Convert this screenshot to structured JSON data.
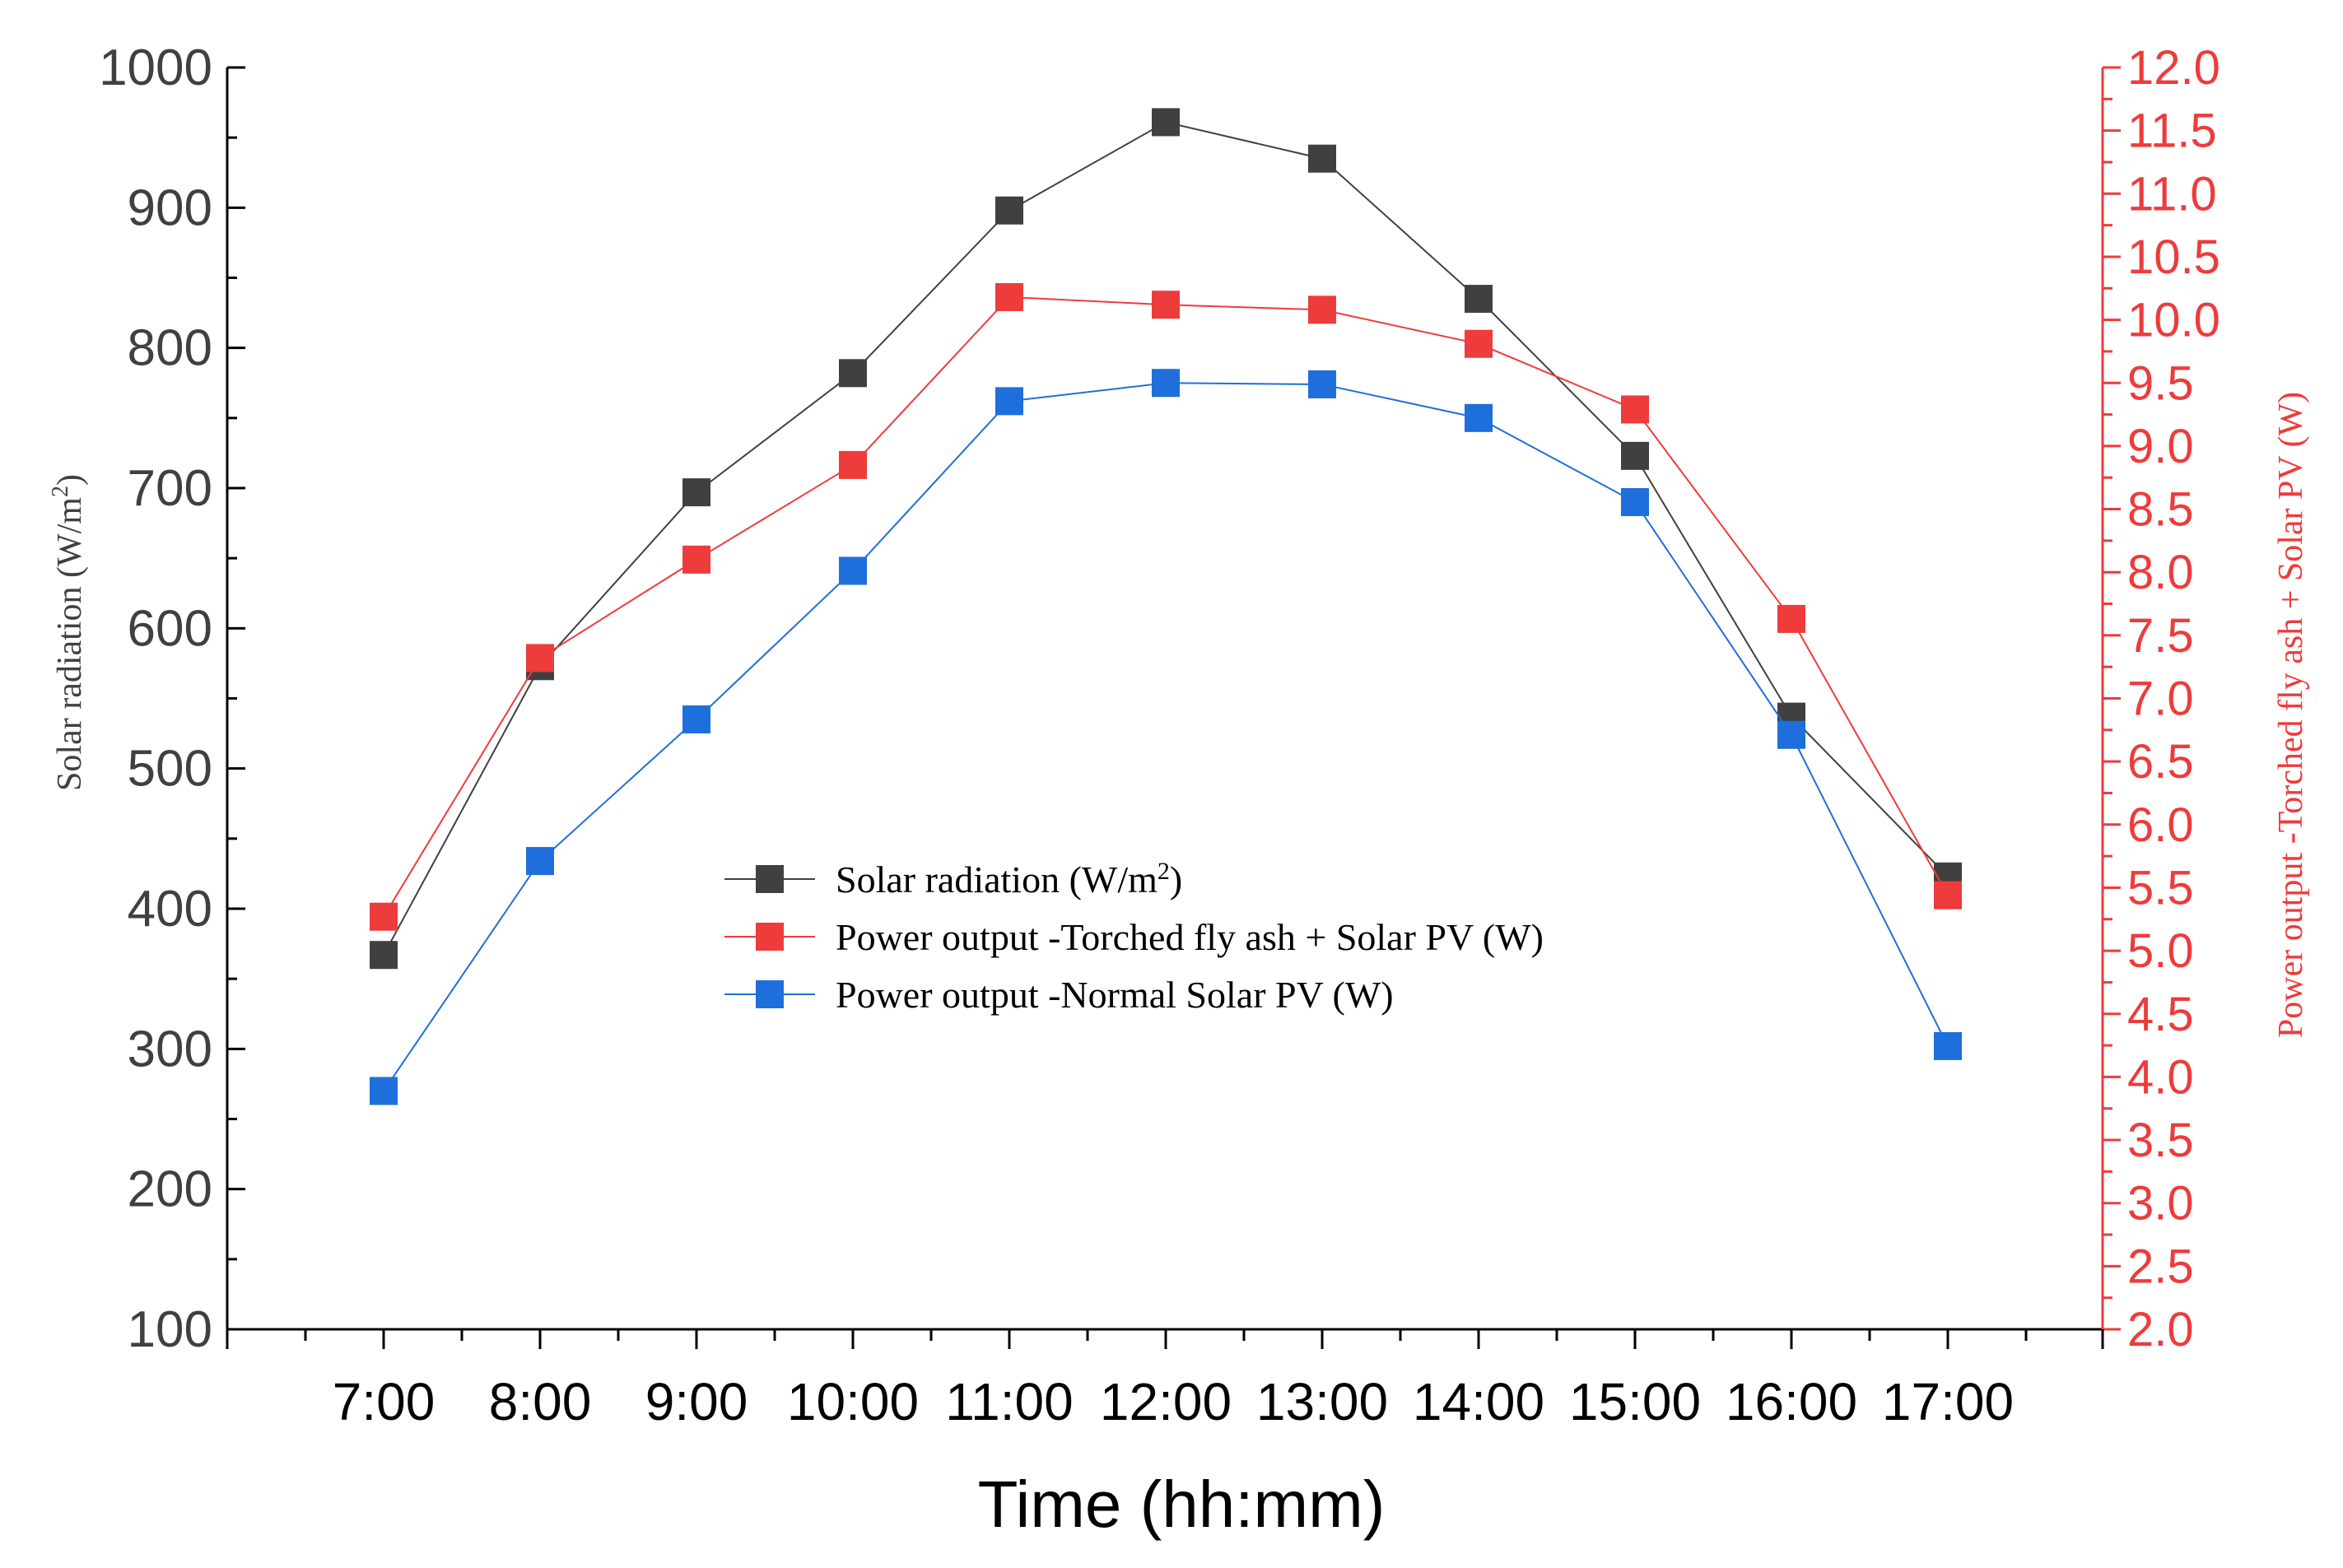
{
  "chart_data": {
    "type": "line",
    "categories": [
      "7:00",
      "8:00",
      "9:00",
      "10:00",
      "11:00",
      "12:00",
      "13:00",
      "14:00",
      "15:00",
      "16:00",
      "17:00"
    ],
    "xlabel": "Time (hh:mm)",
    "ylabel_left": {
      "main": "Solar radiation (W/m",
      "sup": "2",
      "close": ")"
    },
    "ylabel_right": "Power output -Torched fly ash + Solar PV (W)",
    "ylim_left": [
      100,
      1000
    ],
    "yticks_left": [
      "100",
      "200",
      "300",
      "400",
      "500",
      "600",
      "700",
      "800",
      "900",
      "1000"
    ],
    "ylim_right": [
      2.0,
      12.0
    ],
    "yticks_right": [
      "2.0",
      "2.5",
      "3.0",
      "3.5",
      "4.0",
      "4.5",
      "5.0",
      "5.5",
      "6.0",
      "6.5",
      "7.0",
      "7.5",
      "8.0",
      "8.5",
      "9.0",
      "9.5",
      "10.0",
      "10.5",
      "11.0",
      "11.5",
      "12.0"
    ],
    "grid": false,
    "legend_position": "center",
    "series": [
      {
        "name": "Solar radiation (W/m",
        "name_sup": "2",
        "name_close": ")",
        "axis": "left",
        "color": "#404040",
        "values": [
          367,
          573,
          697,
          782,
          898,
          961,
          935,
          835,
          723,
          537,
          423
        ]
      },
      {
        "name": "Power output -Torched fly ash + Solar PV (W)",
        "name_sup": "",
        "name_close": "",
        "axis": "right",
        "color": "#ee3b3b",
        "values": [
          5.27,
          7.32,
          8.1,
          8.85,
          10.18,
          10.12,
          10.08,
          9.81,
          9.29,
          7.63,
          5.44
        ]
      },
      {
        "name": "Power output -Normal Solar PV (W)",
        "name_sup": "",
        "name_close": "",
        "axis": "left",
        "color": "#1e6fdb",
        "values": [
          270,
          434,
          535,
          641,
          762,
          775,
          774,
          750,
          690,
          524,
          302
        ]
      }
    ]
  }
}
